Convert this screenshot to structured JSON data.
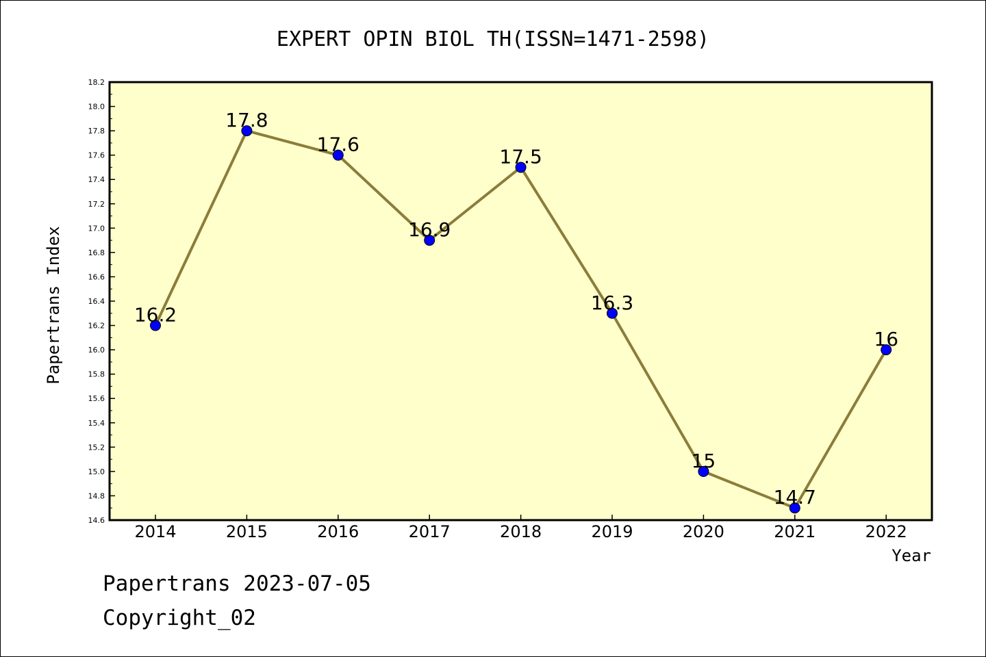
{
  "chart_data": {
    "type": "line",
    "title": "EXPERT OPIN BIOL TH(ISSN=1471-2598)",
    "xlabel": "Year",
    "ylabel": "Papertrans Index",
    "x": [
      "2014",
      "2015",
      "2016",
      "2017",
      "2018",
      "2019",
      "2020",
      "2021",
      "2022"
    ],
    "values": [
      16.2,
      17.8,
      17.6,
      16.9,
      17.5,
      16.3,
      15.0,
      14.7,
      16.0
    ],
    "data_labels": [
      "16.2",
      "17.8",
      "17.6",
      "16.9",
      "17.5",
      "16.3",
      "15",
      "14.7",
      "16"
    ],
    "ylim": [
      14.6,
      18.2
    ],
    "yticks": [
      "14.6",
      "14.8",
      "15.0",
      "15.2",
      "15.4",
      "15.6",
      "15.8",
      "16.0",
      "16.2",
      "16.4",
      "16.6",
      "16.8",
      "17.0",
      "17.2",
      "17.4",
      "17.6",
      "17.8",
      "18.0",
      "18.2"
    ],
    "grid": false,
    "colors": {
      "line": "#8b7d3a",
      "marker": "#0000ff",
      "plot_background": "#ffffcc"
    }
  },
  "footer": {
    "line1": "Papertrans 2023-07-05",
    "line2": "Copyright_02"
  }
}
